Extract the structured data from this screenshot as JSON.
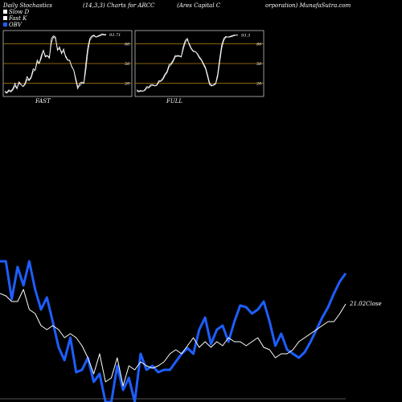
{
  "header": {
    "title_1": "Daily Stochastics",
    "title_2": "(14,3,3) Charts for ARCC",
    "title_3": "(Ares Capital C",
    "title_4": "orporation) MunafaSutra.com"
  },
  "legend": [
    {
      "label": "Slow D",
      "color": "#ffffff"
    },
    {
      "label": "Fast K",
      "color": "#ffffff"
    },
    {
      "label": "OBV",
      "color": "#1e5eff"
    }
  ],
  "colors": {
    "background": "#000000",
    "stoch_line": "#ffffff",
    "obv_line": "#1e5eff",
    "close_line": "#ffffff",
    "level_line": "#b8860b"
  },
  "chart_data": [
    {
      "type": "line",
      "label": "FAST",
      "end_label": "93.71",
      "ylim": [
        0,
        100
      ],
      "y_ticks": [
        "80",
        "50",
        "20"
      ],
      "y_tick_values": [
        80,
        50,
        20
      ],
      "series": [
        {
          "values": [
            8,
            6,
            10,
            8,
            12,
            20,
            12,
            22,
            18,
            15,
            20,
            30,
            25,
            30,
            42,
            40,
            55,
            50,
            62,
            70,
            60,
            62,
            58,
            88,
            92,
            90,
            70,
            75,
            65,
            72,
            60,
            55,
            55,
            45,
            40,
            25,
            12,
            20,
            22,
            20,
            50,
            75,
            88,
            92,
            93,
            90,
            92,
            93,
            95,
            94,
            94
          ]
        },
        {
          "values": [
            6,
            5,
            8,
            7,
            10,
            16,
            12,
            20,
            18,
            15,
            18,
            26,
            24,
            28,
            38,
            40,
            52,
            50,
            58,
            70,
            62,
            62,
            60,
            82,
            90,
            88,
            72,
            72,
            68,
            68,
            62,
            56,
            54,
            46,
            40,
            28,
            15,
            16,
            20,
            20,
            40,
            68,
            85,
            90,
            92,
            90,
            91,
            92,
            93,
            93,
            93
          ]
        }
      ]
    },
    {
      "type": "line",
      "label": "FULL",
      "end_label": "93.3",
      "ylim": [
        0,
        100
      ],
      "y_ticks": [
        "80",
        "50",
        "20"
      ],
      "y_tick_values": [
        80,
        50,
        20
      ],
      "series": [
        {
          "values": [
            10,
            8,
            9,
            8,
            10,
            15,
            14,
            18,
            18,
            16,
            18,
            24,
            24,
            28,
            34,
            38,
            48,
            50,
            55,
            62,
            62,
            62,
            60,
            76,
            85,
            88,
            78,
            72,
            68,
            68,
            64,
            58,
            55,
            48,
            42,
            30,
            18,
            16,
            18,
            20,
            34,
            58,
            78,
            88,
            91,
            90,
            91,
            92,
            93,
            93,
            93
          ]
        },
        {
          "values": [
            8,
            7,
            8,
            8,
            9,
            13,
            13,
            16,
            17,
            16,
            17,
            22,
            23,
            26,
            32,
            36,
            45,
            48,
            53,
            60,
            61,
            61,
            60,
            72,
            82,
            86,
            80,
            73,
            69,
            68,
            65,
            60,
            56,
            50,
            44,
            33,
            21,
            17,
            17,
            19,
            30,
            52,
            73,
            85,
            90,
            90,
            90,
            91,
            92,
            93,
            93
          ]
        }
      ]
    },
    {
      "type": "line",
      "label": "",
      "end_label": "21.02Close",
      "series": [
        {
          "name": "OBV",
          "values": [
            325,
            325,
            372,
            332,
            355,
            325,
            360,
            385,
            370,
            400,
            432,
            448,
            420,
            463,
            460,
            445,
            475,
            465,
            500,
            500,
            455,
            485,
            470,
            500,
            440,
            460,
            455,
            463,
            460,
            460,
            450,
            440,
            433,
            440,
            410,
            395,
            428,
            410,
            405,
            425,
            400,
            380,
            382,
            390,
            385,
            375,
            400,
            430,
            415,
            435,
            440,
            445,
            438,
            425,
            410,
            395,
            382,
            365,
            350,
            340
          ]
        },
        {
          "name": "Close",
          "values": [
            365,
            368,
            375,
            375,
            360,
            385,
            390,
            405,
            410,
            405,
            410,
            420,
            415,
            420,
            430,
            445,
            465,
            440,
            475,
            470,
            445,
            480,
            455,
            460,
            450,
            455,
            458,
            455,
            450,
            440,
            435,
            440,
            430,
            420,
            432,
            425,
            432,
            425,
            430,
            420,
            425,
            425,
            430,
            425,
            420,
            432,
            435,
            445,
            440,
            440,
            435,
            425,
            420,
            415,
            410,
            405,
            400,
            400,
            390,
            378
          ]
        }
      ]
    }
  ]
}
